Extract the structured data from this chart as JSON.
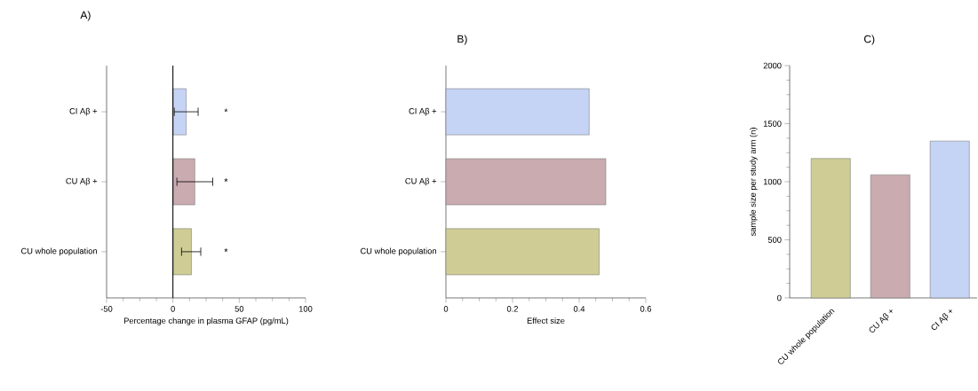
{
  "chart_data": [
    {
      "type": "bar",
      "orientation": "horizontal",
      "title": "A)",
      "xlabel": "Percentage change in plasma GFAP (pg/mL)",
      "categories": [
        "CI Aβ +",
        "CU Aβ +",
        "CU whole population"
      ],
      "values": [
        10,
        16.5,
        14
      ],
      "errors": [
        [
          1,
          19
        ],
        [
          3,
          30
        ],
        [
          6.5,
          21
        ]
      ],
      "colors": [
        "#c5d3f5",
        "#c9abb0",
        "#cfcd95"
      ],
      "xlim": [
        -50,
        100
      ],
      "xticks": [
        -50,
        0,
        50,
        100
      ],
      "ref_lines": [
        {
          "axis": "x",
          "value": 0
        }
      ],
      "annotations": [
        "*",
        "*",
        "*"
      ]
    },
    {
      "type": "bar",
      "orientation": "horizontal",
      "title": "B)",
      "xlabel": "Effect size",
      "categories": [
        "CI Aβ +",
        "CU Aβ +",
        "CU whole population"
      ],
      "values": [
        0.43,
        0.48,
        0.46
      ],
      "colors": [
        "#c5d3f5",
        "#c9abb0",
        "#cfcd95"
      ],
      "xlim": [
        0,
        0.6
      ],
      "xticks": [
        0,
        0.2,
        0.4,
        0.6
      ]
    },
    {
      "type": "bar",
      "title": "C)",
      "ylabel": "sample size per study arm (n)",
      "categories": [
        "CU whole population",
        "CU Aβ +",
        "CI Aβ +"
      ],
      "values": [
        1200,
        1060,
        1350
      ],
      "colors": [
        "#cfcd95",
        "#c9abb0",
        "#c5d3f5"
      ],
      "ylim": [
        0,
        2000
      ],
      "yticks": [
        0,
        500,
        1000,
        1500,
        2000
      ]
    }
  ]
}
